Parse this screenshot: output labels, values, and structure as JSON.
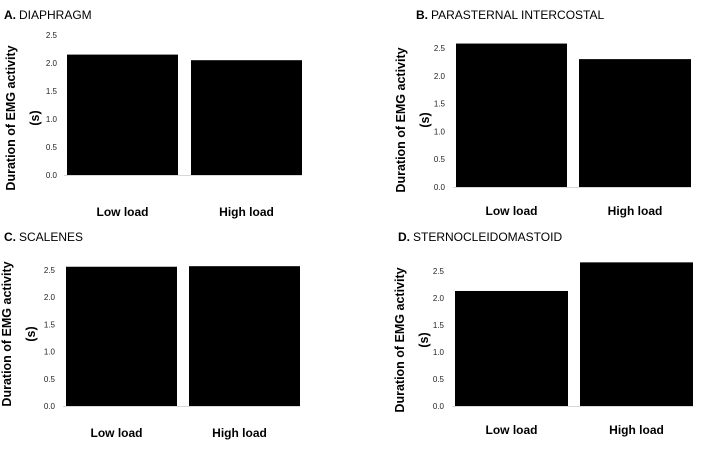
{
  "chart_data": [
    {
      "type": "bar",
      "panel_letter": "A.",
      "title": "DIAPHRAGM",
      "ylabel_line1": "Duration of EMG activity",
      "ylabel_line2": "(s)",
      "categories": [
        "Low load",
        "High load"
      ],
      "values": [
        2.15,
        2.05
      ],
      "ylim": [
        0,
        2.5
      ],
      "yticks": [
        "0.0",
        "0.5",
        "1.0",
        "1.5",
        "2.0",
        "2.5"
      ],
      "bar_color": "#000000",
      "grid": false
    },
    {
      "type": "bar",
      "panel_letter": "B.",
      "title": "PARASTERNAL INTERCOSTAL",
      "ylabel_line1": "Duration of EMG activity",
      "ylabel_line2": "(s)",
      "categories": [
        "Low load",
        "High load"
      ],
      "values": [
        2.58,
        2.3
      ],
      "ylim": [
        0,
        2.5
      ],
      "yticks": [
        "0.0",
        "0.5",
        "1.0",
        "1.5",
        "2.0",
        "2.5"
      ],
      "bar_color": "#000000",
      "grid": false
    },
    {
      "type": "bar",
      "panel_letter": "C.",
      "title": "SCALENES",
      "ylabel_line1": "Duration of EMG activity",
      "ylabel_line2": "(s)",
      "categories": [
        "Low load",
        "High load"
      ],
      "values": [
        2.56,
        2.57
      ],
      "ylim": [
        0,
        2.5
      ],
      "yticks": [
        "0.0",
        "0.5",
        "1.0",
        "1.5",
        "2.0",
        "2.5"
      ],
      "bar_color": "#000000",
      "grid": false
    },
    {
      "type": "bar",
      "panel_letter": "D.",
      "title": "STERNOCLEIDOMASTOID",
      "ylabel_line1": "Duration of EMG activity",
      "ylabel_line2": "(s)",
      "categories": [
        "Low load",
        "High load"
      ],
      "values": [
        2.13,
        2.66
      ],
      "ylim": [
        0,
        2.5
      ],
      "yticks": [
        "0.0",
        "0.5",
        "1.0",
        "1.5",
        "2.0",
        "2.5"
      ],
      "bar_color": "#000000",
      "grid": false
    }
  ]
}
